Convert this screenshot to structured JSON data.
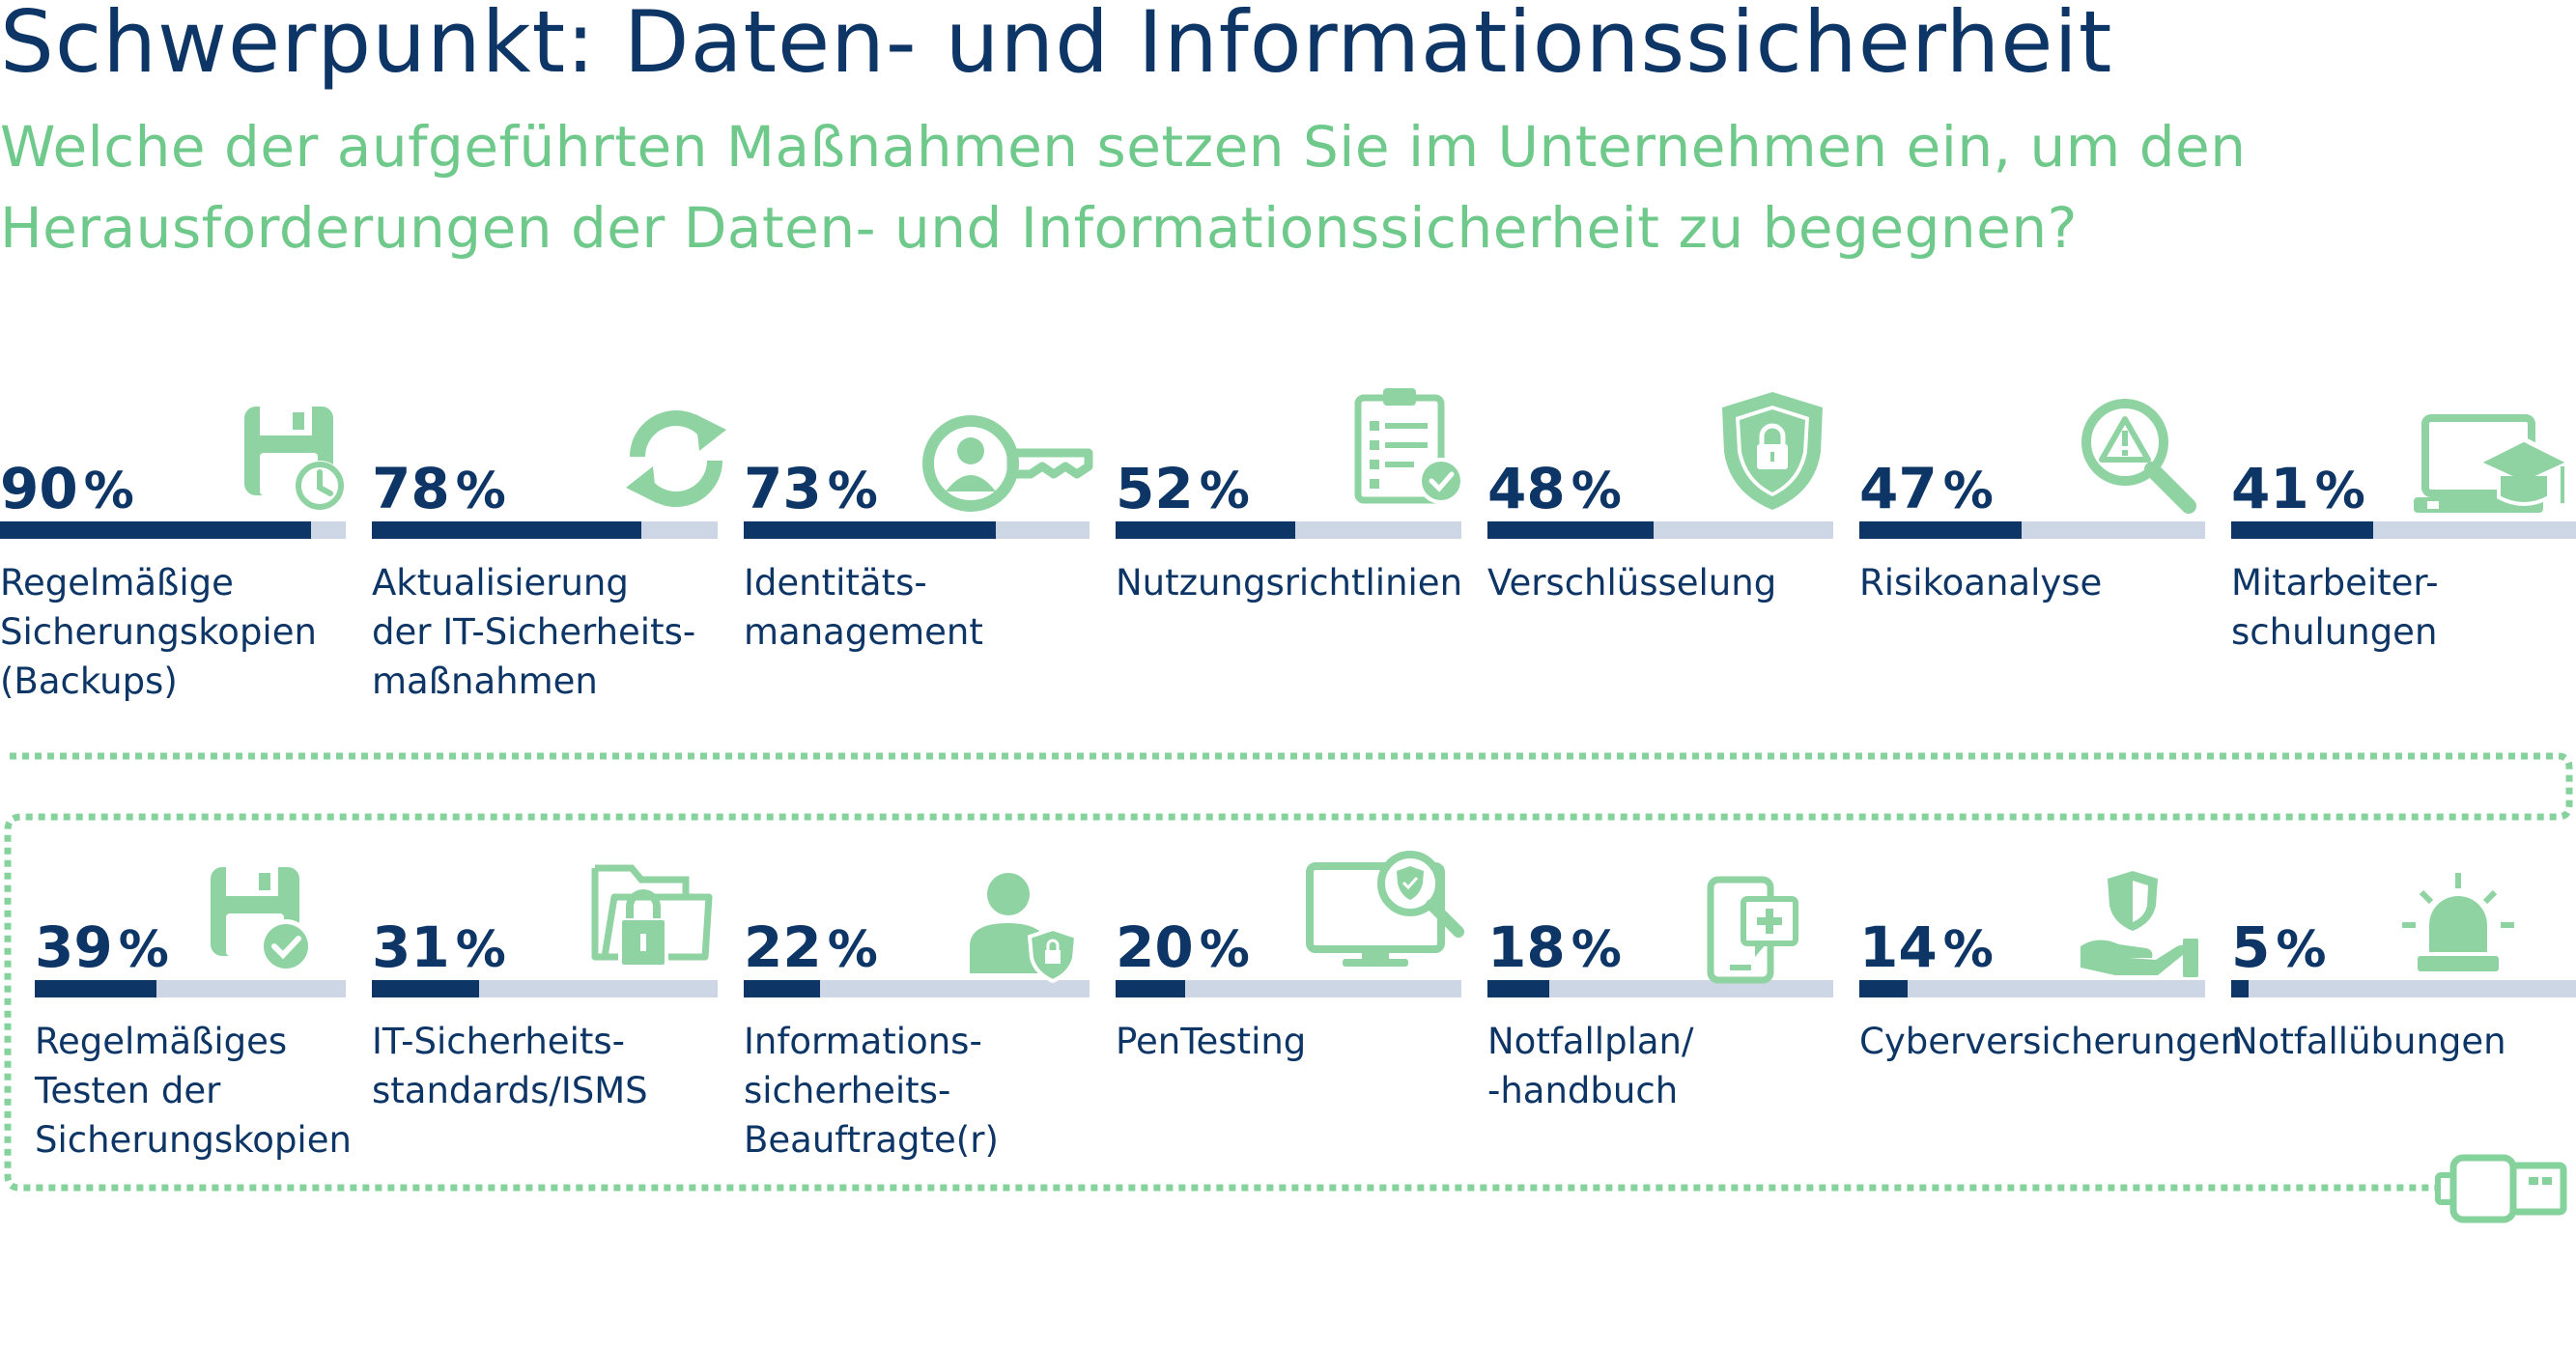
{
  "title": "Schwerpunkt: Daten- und Informationssicherheit",
  "subtitle": "Welche der aufgeführten Maßnahmen setzen Sie im Unternehmen ein, um den Herausforderungen der Daten- und Informationssicherheit zu begegnen?",
  "colors": {
    "title": "#0d3566",
    "accent": "#6ec98a",
    "bar_fill": "#0d3566",
    "bar_track": "#ccd6e4"
  },
  "chart_data": {
    "type": "bar",
    "orientation": "horizontal-progress",
    "unit": "%",
    "ylim": [
      0,
      100
    ],
    "categories": [
      "Regelmäßige\nSicherungskopien\n(Backups)",
      "Aktualisierung\nder IT-Sicherheits-\nmaßnahmen",
      "Identitäts-\nmanagement",
      "Nutzungsrichtlinien",
      "Verschlüsselung",
      "Risikoanalyse",
      "Mitarbeiter-\nschulungen",
      "Regelmäßiges\nTesten der\nSicherungskopien",
      "IT-Sicherheits-\nstandards/ISMS",
      "Informations-\nsicherheits-\nBeauftragte(r)",
      "PenTesting",
      "Notfallplan/\n-handbuch",
      "Cyberversicherungen",
      "Notfallübungen"
    ],
    "values": [
      90,
      78,
      73,
      52,
      48,
      47,
      41,
      39,
      31,
      22,
      20,
      18,
      14,
      5
    ],
    "icons": [
      "floppy-disk-clock-icon",
      "refresh-arrows-icon",
      "key-user-icon",
      "clipboard-check-icon",
      "shield-lock-icon",
      "magnifier-warning-icon",
      "laptop-graduation-cap-icon",
      "floppy-disk-check-icon",
      "folder-lock-icon",
      "user-shield-icon",
      "monitor-shield-search-icon",
      "smartphone-first-aid-icon",
      "hand-shield-icon",
      "alarm-light-icon"
    ]
  }
}
